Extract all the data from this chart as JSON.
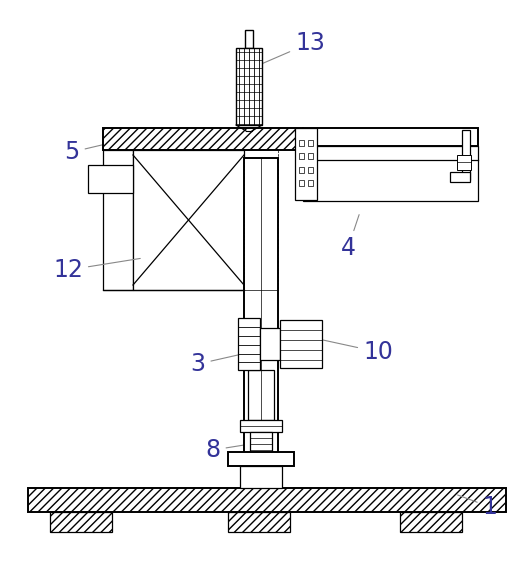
{
  "background_color": "#ffffff",
  "line_color": "#000000",
  "figsize": [
    5.32,
    5.71
  ],
  "dpi": 100,
  "label_color": "#333399",
  "label_fs": 15
}
